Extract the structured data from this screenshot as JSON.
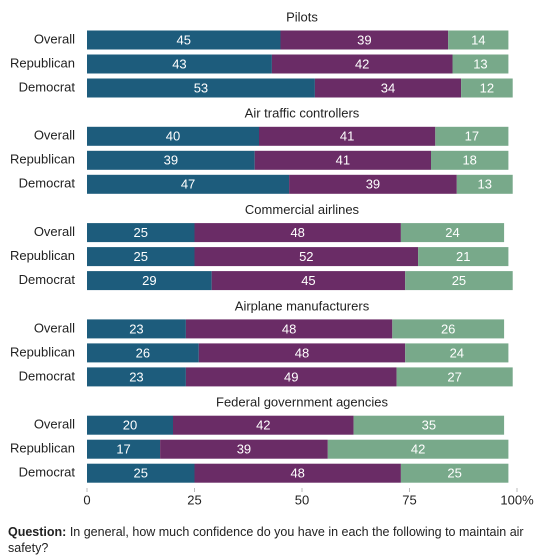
{
  "chart_data": {
    "type": "bar",
    "orientation": "horizontal",
    "stacked": true,
    "xlim": [
      0,
      100
    ],
    "xticks": [
      0,
      25,
      50,
      75,
      {
        "value": 100,
        "label": "100%"
      }
    ],
    "colors": [
      "#1d5c7c",
      "#6a2c66",
      "#78a98a"
    ],
    "panels": [
      {
        "title": "Pilots",
        "categories": [
          "Overall",
          "Republican",
          "Democrat"
        ],
        "series": [
          {
            "values": [
              45,
              43,
              53
            ]
          },
          {
            "values": [
              39,
              42,
              34
            ]
          },
          {
            "values": [
              14,
              13,
              12
            ]
          }
        ]
      },
      {
        "title": "Air traffic controllers",
        "categories": [
          "Overall",
          "Republican",
          "Democrat"
        ],
        "series": [
          {
            "values": [
              40,
              39,
              47
            ]
          },
          {
            "values": [
              41,
              41,
              39
            ]
          },
          {
            "values": [
              17,
              18,
              13
            ]
          }
        ]
      },
      {
        "title": "Commercial airlines",
        "categories": [
          "Overall",
          "Republican",
          "Democrat"
        ],
        "series": [
          {
            "values": [
              25,
              25,
              29
            ]
          },
          {
            "values": [
              48,
              52,
              45
            ]
          },
          {
            "values": [
              24,
              21,
              25
            ]
          }
        ]
      },
      {
        "title": "Airplane manufacturers",
        "categories": [
          "Overall",
          "Republican",
          "Democrat"
        ],
        "series": [
          {
            "values": [
              23,
              26,
              23
            ]
          },
          {
            "values": [
              48,
              48,
              49
            ]
          },
          {
            "values": [
              26,
              24,
              27
            ]
          }
        ]
      },
      {
        "title": "Federal government agencies",
        "categories": [
          "Overall",
          "Republican",
          "Democrat"
        ],
        "series": [
          {
            "values": [
              20,
              17,
              25
            ]
          },
          {
            "values": [
              42,
              39,
              48
            ]
          },
          {
            "values": [
              35,
              42,
              25
            ]
          }
        ]
      }
    ],
    "note_label": "Question:",
    "note": "In general, how much confidence do you have in each the following to maintain air safety?"
  }
}
